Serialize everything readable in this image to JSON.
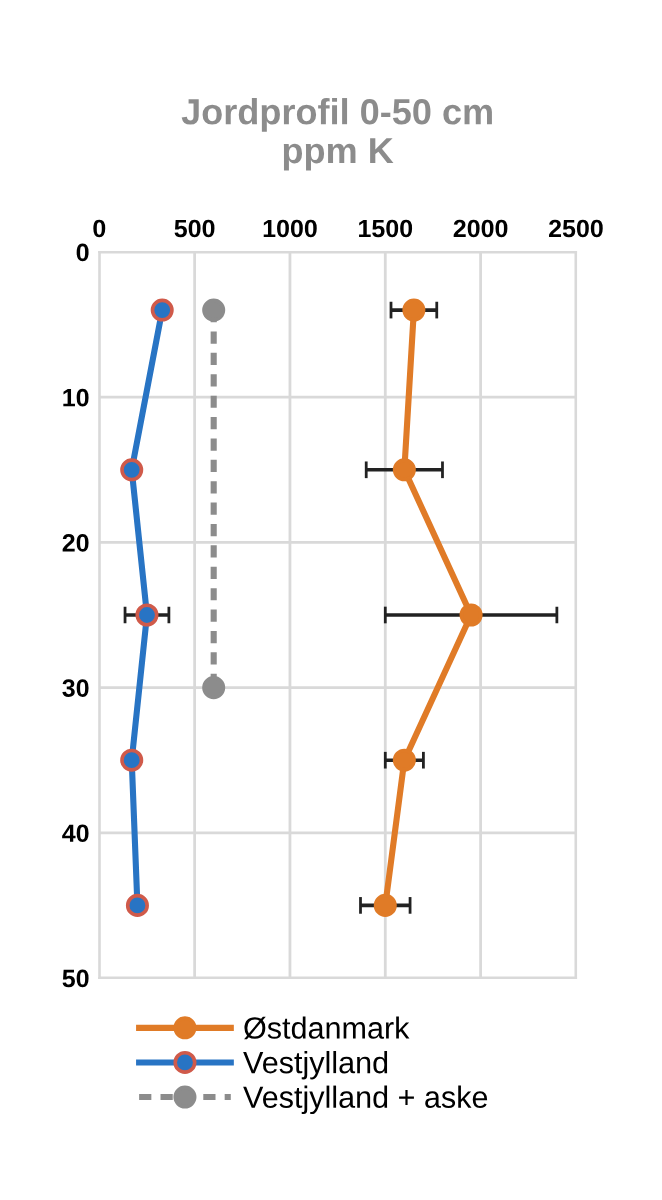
{
  "chart_data": {
    "type": "line",
    "title": "Jordprofil 0-50 cm\nppm K",
    "xlim": [
      0,
      2500
    ],
    "xticks": [
      0,
      500,
      1000,
      1500,
      2000,
      2500
    ],
    "ylim": [
      50,
      0
    ],
    "yticks": [
      0,
      10,
      20,
      30,
      40,
      50
    ],
    "grid": true,
    "legend": "bottom",
    "marker": "circle",
    "series": [
      {
        "name": "Østdanmark",
        "color": "#e07b27",
        "x": [
          1650,
          1600,
          1950,
          1600,
          1500
        ],
        "values": [
          4,
          15,
          25,
          35,
          45
        ],
        "xerrors": [
          120,
          200,
          450,
          100,
          130
        ]
      },
      {
        "name": "Vestjylland",
        "color": "#2874c4",
        "x": [
          330,
          170,
          250,
          170,
          200
        ],
        "values": [
          4,
          15,
          25,
          35,
          45
        ],
        "xerrors": [
          30,
          null,
          115,
          null,
          null
        ]
      },
      {
        "name": "Vestjylland + aske",
        "color": "#8c8c8c",
        "line_style": "dashed",
        "x": [
          600,
          600
        ],
        "values": [
          4,
          30
        ]
      }
    ]
  }
}
